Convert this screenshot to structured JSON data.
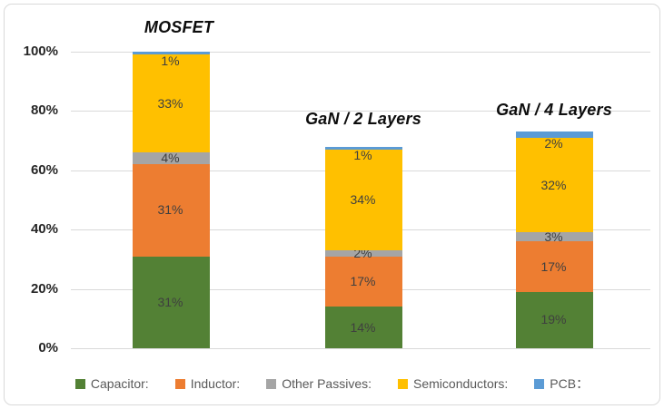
{
  "figure": {
    "background": "#ffffff",
    "border_color": "#d9d9d9"
  },
  "chart_data": {
    "type": "bar",
    "stacked": true,
    "title": "",
    "xlabel": "",
    "ylabel": "",
    "ylim": [
      0,
      100
    ],
    "grid": true,
    "legend_position": "bottom",
    "value_suffix": "%",
    "categories": [
      "MOSFET",
      "GaN / 2 Layers",
      "GaN / 4 Layers"
    ],
    "series": [
      {
        "name": "Capacitor:",
        "color": "#538135",
        "values": [
          31,
          14,
          19
        ]
      },
      {
        "name": "Inductor:",
        "color": "#ED7D31",
        "values": [
          31,
          17,
          17
        ]
      },
      {
        "name": "Other Passives:",
        "color": "#A5A5A5",
        "values": [
          4,
          2,
          3
        ]
      },
      {
        "name": "Semiconductors:",
        "color": "#FFC000",
        "values": [
          33,
          34,
          32
        ]
      },
      {
        "name": "PCB：",
        "color": "#5B9BD5",
        "values": [
          1,
          1,
          2
        ]
      }
    ],
    "y_ticks": [
      "100%",
      "80%",
      "60%",
      "40%",
      "20%",
      "0%"
    ],
    "y_tick_values": [
      100,
      80,
      60,
      40,
      20,
      0
    ],
    "colors": {
      "gridline": "#d9d9d9",
      "axis_label": "#262626",
      "data_label": "#3f3f3f",
      "legend_text": "#595959"
    }
  }
}
